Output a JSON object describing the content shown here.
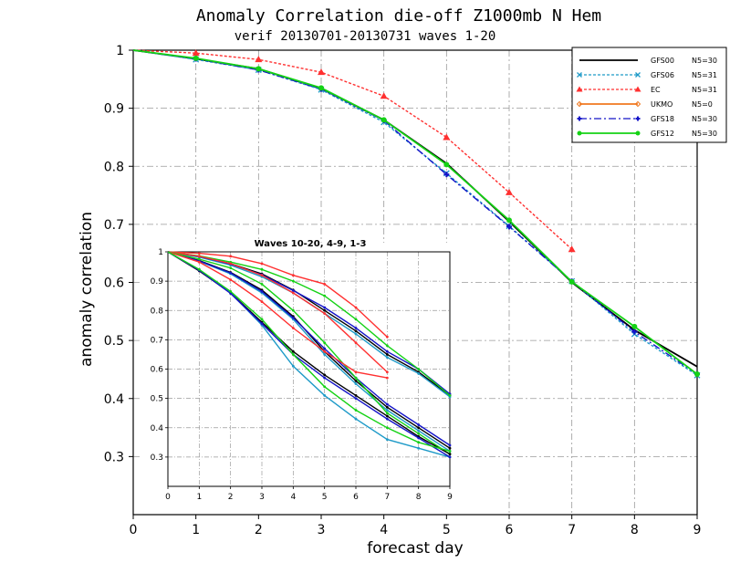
{
  "chart_data": [
    {
      "type": "line",
      "title": "Anomaly Correlation die-off  Z1000mb N Hem",
      "subtitle": "verif 20130701-20130731 waves 1-20",
      "xlabel": "forecast day",
      "ylabel": "anomaly correlation",
      "xlim": [
        0,
        9
      ],
      "ylim": [
        0.2,
        1.0
      ],
      "x_ticks": [
        "0",
        "1",
        "2",
        "3",
        "4",
        "5",
        "6",
        "7",
        "8",
        "9"
      ],
      "y_ticks": [
        "0.3",
        "0.4",
        "0.5",
        "0.6",
        "0.7",
        "0.8",
        "0.9",
        "1"
      ],
      "grid": true,
      "legend": "top-right",
      "series": [
        {
          "name": "GFS00",
          "n": "N5=30",
          "color": "#000000",
          "marker": "none",
          "dash": "solid",
          "x": [
            0,
            1,
            2,
            3,
            4,
            5,
            6,
            7,
            8,
            9
          ],
          "y": [
            1.0,
            0.985,
            0.968,
            0.934,
            0.88,
            0.805,
            0.705,
            0.6,
            0.518,
            0.455
          ]
        },
        {
          "name": "GFS06",
          "n": "N5=31",
          "color": "#1e9ac8",
          "marker": "x",
          "dash": "dotted",
          "x": [
            0,
            1,
            2,
            3,
            4,
            5,
            6,
            7,
            8,
            9
          ],
          "y": [
            1.0,
            0.984,
            0.966,
            0.932,
            0.876,
            0.788,
            0.697,
            0.602,
            0.511,
            0.44
          ]
        },
        {
          "name": "EC",
          "n": "N5=31",
          "color": "#ff3030",
          "marker": "triangle",
          "dash": "dotted",
          "x": [
            0,
            1,
            2,
            3,
            4,
            5,
            6,
            7
          ],
          "y": [
            1.0,
            0.995,
            0.984,
            0.962,
            0.921,
            0.85,
            0.755,
            0.657
          ]
        },
        {
          "name": "UKMO",
          "n": "N5=0",
          "color": "#f07820",
          "marker": "diamond",
          "dash": "solid",
          "x": [],
          "y": []
        },
        {
          "name": "GFS18",
          "n": "N5=30",
          "color": "#1414c8",
          "marker": "plus",
          "dash": "dashdot",
          "x": [
            0,
            1,
            2,
            3,
            4,
            5,
            6,
            7,
            8,
            9
          ],
          "y": [
            1.0,
            0.985,
            0.966,
            0.933,
            0.879,
            0.786,
            0.696,
            0.602,
            0.515,
            0.442
          ]
        },
        {
          "name": "GFS12",
          "n": "N5=30",
          "color": "#14d214",
          "marker": "circle",
          "dash": "solid",
          "x": [
            0,
            1,
            2,
            3,
            4,
            5,
            6,
            7,
            8,
            9
          ],
          "y": [
            1.0,
            0.986,
            0.968,
            0.935,
            0.88,
            0.803,
            0.707,
            0.601,
            0.524,
            0.442
          ]
        }
      ]
    },
    {
      "type": "line",
      "title": "Waves 10-20, 4-9, 1-3",
      "xlim": [
        0,
        9
      ],
      "ylim": [
        0.2,
        1.0
      ],
      "x_ticks": [
        "0",
        "1",
        "2",
        "3",
        "4",
        "5",
        "6",
        "7",
        "8",
        "9"
      ],
      "y_ticks": [
        "0.3",
        "0.4",
        "0.5",
        "0.6",
        "0.7",
        "0.8",
        "0.9",
        "1"
      ],
      "grid": true,
      "series": [
        {
          "name": "GFS00 waves 1-3",
          "color": "#000000",
          "x": [
            0,
            1,
            2,
            3,
            4,
            5,
            6,
            7,
            8,
            9
          ],
          "y": [
            1.0,
            0.985,
            0.96,
            0.925,
            0.87,
            0.8,
            0.73,
            0.65,
            0.59,
            0.51
          ]
        },
        {
          "name": "GFS06 waves 1-3",
          "color": "#1e9ac8",
          "x": [
            0,
            1,
            2,
            3,
            4,
            5,
            6,
            7,
            8,
            9
          ],
          "y": [
            1.0,
            0.982,
            0.955,
            0.915,
            0.86,
            0.79,
            0.72,
            0.64,
            0.585,
            0.505
          ]
        },
        {
          "name": "EC waves 1-3",
          "color": "#ff3030",
          "x": [
            0,
            1,
            2,
            3,
            4,
            5,
            6,
            7
          ],
          "y": [
            1.0,
            0.995,
            0.985,
            0.96,
            0.92,
            0.89,
            0.81,
            0.71
          ]
        },
        {
          "name": "GFS18 waves 1-3",
          "color": "#1414c8",
          "x": [
            0,
            1,
            2,
            3,
            4,
            5,
            6,
            7,
            8,
            9
          ],
          "y": [
            1.0,
            0.984,
            0.958,
            0.922,
            0.868,
            0.81,
            0.74,
            0.66,
            0.6,
            0.515
          ]
        },
        {
          "name": "GFS12 waves 1-3",
          "color": "#14d214",
          "x": [
            0,
            1,
            2,
            3,
            4,
            5,
            6,
            7,
            8,
            9
          ],
          "y": [
            1.0,
            0.986,
            0.965,
            0.94,
            0.9,
            0.85,
            0.77,
            0.68,
            0.6,
            0.51
          ]
        },
        {
          "name": "GFS00 waves 4-9",
          "color": "#000000",
          "x": [
            0,
            1,
            2,
            3,
            4,
            5,
            6,
            7,
            8,
            9
          ],
          "y": [
            1.0,
            0.97,
            0.93,
            0.87,
            0.78,
            0.66,
            0.56,
            0.47,
            0.4,
            0.33
          ]
        },
        {
          "name": "GFS06 waves 4-9",
          "color": "#1e9ac8",
          "x": [
            0,
            1,
            2,
            3,
            4,
            5,
            6,
            7,
            8,
            9
          ],
          "y": [
            1.0,
            0.968,
            0.925,
            0.86,
            0.77,
            0.65,
            0.55,
            0.46,
            0.39,
            0.32
          ]
        },
        {
          "name": "EC waves 4-9",
          "color": "#ff3030",
          "x": [
            0,
            1,
            2,
            3,
            4,
            5,
            6,
            7
          ],
          "y": [
            1.0,
            0.985,
            0.96,
            0.92,
            0.86,
            0.79,
            0.69,
            0.59
          ]
        },
        {
          "name": "GFS18 waves 4-9",
          "color": "#1414c8",
          "x": [
            0,
            1,
            2,
            3,
            4,
            5,
            6,
            7,
            8,
            9
          ],
          "y": [
            1.0,
            0.969,
            0.928,
            0.865,
            0.775,
            0.67,
            0.57,
            0.48,
            0.41,
            0.34
          ]
        },
        {
          "name": "GFS12 waves 4-9",
          "color": "#14d214",
          "x": [
            0,
            1,
            2,
            3,
            4,
            5,
            6,
            7,
            8,
            9
          ],
          "y": [
            1.0,
            0.975,
            0.945,
            0.89,
            0.8,
            0.69,
            0.57,
            0.45,
            0.38,
            0.31
          ]
        },
        {
          "name": "GFS00 waves 10-20",
          "color": "#000000",
          "x": [
            0,
            1,
            2,
            3,
            4,
            5,
            6,
            7,
            8,
            9
          ],
          "y": [
            1.0,
            0.935,
            0.86,
            0.76,
            0.66,
            0.58,
            0.51,
            0.44,
            0.37,
            0.31
          ]
        },
        {
          "name": "GFS06 waves 10-20",
          "color": "#1e9ac8",
          "x": [
            0,
            1,
            2,
            3,
            4,
            5,
            6,
            7,
            8,
            9
          ],
          "y": [
            1.0,
            0.94,
            0.86,
            0.75,
            0.61,
            0.51,
            0.43,
            0.36,
            0.33,
            0.3
          ]
        },
        {
          "name": "EC waves 10-20",
          "color": "#ff3030",
          "x": [
            0,
            1,
            2,
            3,
            4,
            5,
            6,
            7
          ],
          "y": [
            1.0,
            0.965,
            0.905,
            0.83,
            0.74,
            0.66,
            0.59,
            0.57
          ]
        },
        {
          "name": "GFS18 waves 10-20",
          "color": "#1414c8",
          "x": [
            0,
            1,
            2,
            3,
            4,
            5,
            6,
            7,
            8,
            9
          ],
          "y": [
            1.0,
            0.937,
            0.858,
            0.755,
            0.65,
            0.57,
            0.5,
            0.43,
            0.365,
            0.3
          ]
        },
        {
          "name": "GFS12 waves 10-20",
          "color": "#14d214",
          "x": [
            0,
            1,
            2,
            3,
            4,
            5,
            6,
            7,
            8,
            9
          ],
          "y": [
            1.0,
            0.94,
            0.865,
            0.77,
            0.65,
            0.54,
            0.46,
            0.4,
            0.35,
            0.32
          ]
        }
      ]
    }
  ]
}
